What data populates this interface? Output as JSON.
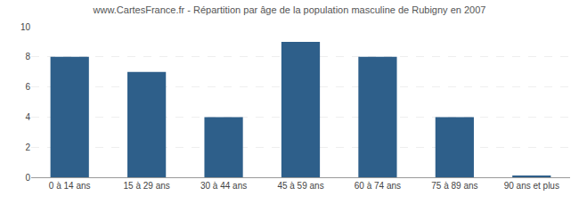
{
  "chart_data": {
    "type": "bar",
    "title": "www.CartesFrance.fr - Répartition par âge de la population masculine de Rubigny en 2007",
    "categories": [
      "0 à 14 ans",
      "15 à 29 ans",
      "30 à 44 ans",
      "45 à 59 ans",
      "60 à 74 ans",
      "75 à 89 ans",
      "90 ans et plus"
    ],
    "values": [
      8,
      7,
      4,
      9,
      8,
      4,
      0.1
    ],
    "color": "#2e5f8a",
    "ylim": [
      0,
      10
    ],
    "yticks": [
      0,
      2,
      4,
      6,
      8,
      10
    ],
    "grid": true
  }
}
